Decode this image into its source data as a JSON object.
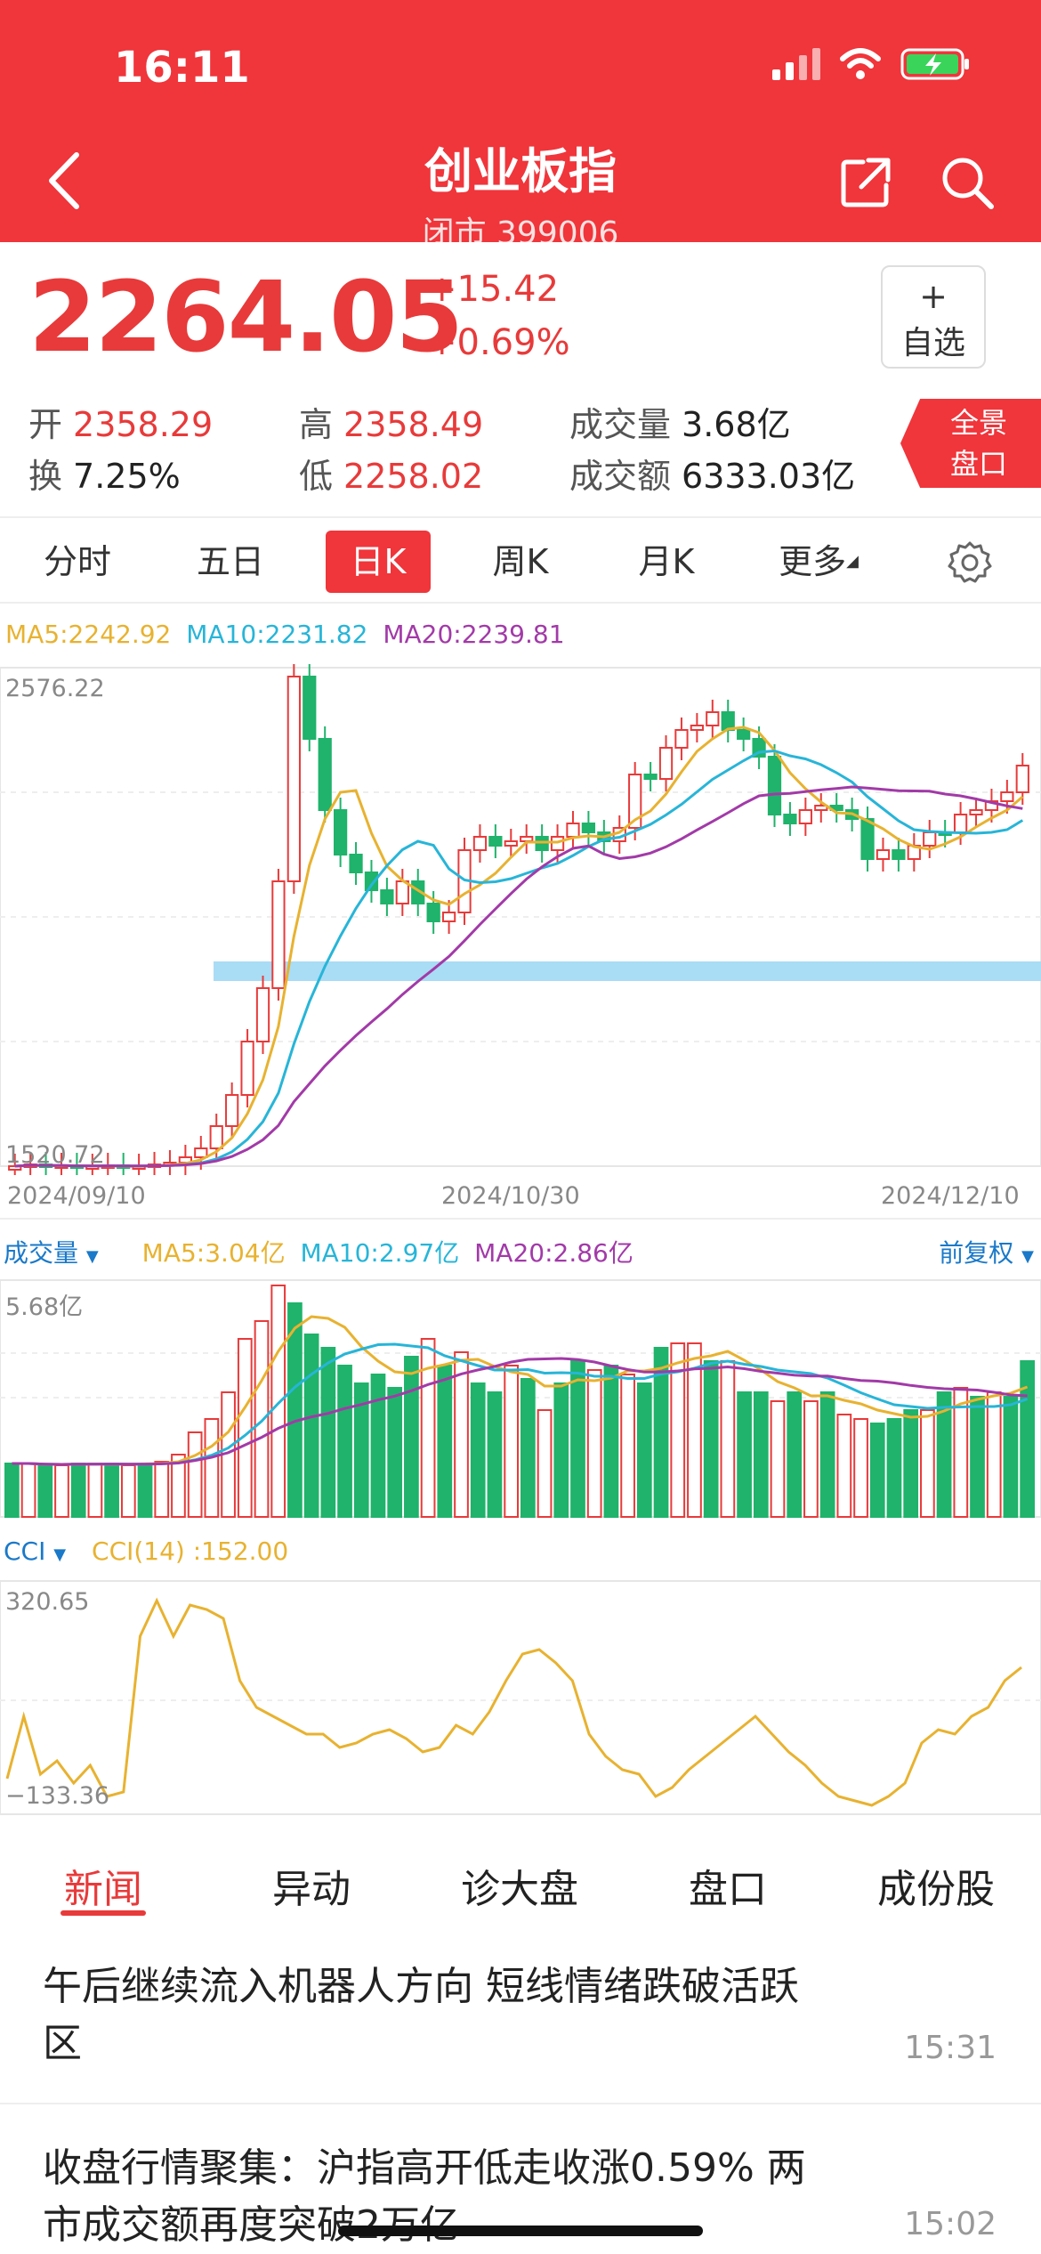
{
  "status": {
    "time": "16:11"
  },
  "header": {
    "title": "创业板指",
    "subtitle": "闭市 399006"
  },
  "quote": {
    "price": "2264.05",
    "change": "+15.42",
    "change_pct": "+0.69%",
    "watch_plus": "+",
    "watch_label": "自选",
    "open_label": "开",
    "open": "2358.29",
    "high_label": "高",
    "high": "2358.49",
    "volume_label": "成交量",
    "volume": "3.68亿",
    "turnover_label": "换",
    "turnover": "7.25%",
    "low_label": "低",
    "low": "2258.02",
    "amount_label": "成交额",
    "amount": "6333.03亿",
    "panorama_line1": "全景",
    "panorama_line2": "盘口"
  },
  "tabs": [
    "分时",
    "五日",
    "日K",
    "周K",
    "月K",
    "更多"
  ],
  "active_tab": "日K",
  "colors": {
    "brand_red": "#f0353b",
    "up": "#e83a3a",
    "down": "#1fb36b",
    "ma5": "#e8b230",
    "ma10": "#27b5d8",
    "ma20": "#a23aa8",
    "support_band": "#a9dcf5"
  },
  "kline": {
    "ma5": "MA5:2242.92",
    "ma10": "MA10:2231.82",
    "ma20": "MA20:2239.81",
    "y_max_label": "2576.22",
    "y_min_label": "1520.72",
    "date_start": "2024/09/10",
    "date_mid": "2024/10/30",
    "date_end": "2024/12/10"
  },
  "volume": {
    "label": "成交量",
    "ma5": "MA5:3.04亿",
    "ma10": "MA10:2.97亿",
    "ma20": "MA20:2.86亿",
    "adjust": "前复权",
    "y_max_label": "5.68亿"
  },
  "cci": {
    "label": "CCI",
    "value": "CCI(14) :152.00",
    "y_max_label": "320.65",
    "y_min_label": "−133.36"
  },
  "news_tabs": [
    "新闻",
    "异动",
    "诊大盘",
    "盘口",
    "成份股"
  ],
  "news": [
    {
      "title": "午后继续流入机器人方向 短线情绪跌破活跃区",
      "time": "15:31"
    },
    {
      "title": "收盘行情聚集：沪指高开低走收涨0.59% 两市成交额再度突破2万亿",
      "time": "15:02"
    }
  ],
  "chart_data": [
    {
      "type": "candlestick",
      "title": "",
      "y_range": [
        1520.72,
        2576.22
      ],
      "x_range": [
        "2024/09/10",
        "2024/12/10"
      ],
      "series": [
        {
          "name": "MA5",
          "value": 2242.92
        },
        {
          "name": "MA10",
          "value": 2231.82
        },
        {
          "name": "MA20",
          "value": 2239.81
        }
      ],
      "last_close": 2264.05
    },
    {
      "type": "bar",
      "title": "成交量",
      "y_max": "5.68亿",
      "series": [
        {
          "name": "MA5",
          "value": "3.04亿"
        },
        {
          "name": "MA10",
          "value": "2.97亿"
        },
        {
          "name": "MA20",
          "value": "2.86亿"
        }
      ]
    },
    {
      "type": "line",
      "title": "CCI",
      "y_range": [
        -133.36,
        320.65
      ],
      "series": [
        {
          "name": "CCI(14)",
          "last": 152.0
        }
      ]
    }
  ]
}
